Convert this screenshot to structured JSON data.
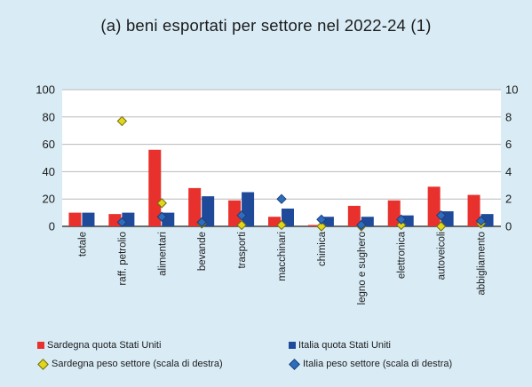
{
  "chart_data": {
    "type": "bar",
    "title": "(a) beni esportati per settore nel 2022-24 (1)",
    "categories": [
      "totale",
      "raff. petrolio",
      "alimentari",
      "bevande",
      "trasporti",
      "macchinari",
      "chimica",
      "legno e sughero",
      "elettronica",
      "autoveicoli",
      "abbigliamento"
    ],
    "y_left": {
      "lim": [
        0,
        100
      ],
      "ticks": [
        0,
        20,
        40,
        60,
        80,
        100
      ],
      "tick_labels": [
        "0",
        "20",
        "40",
        "60",
        "80",
        "100"
      ]
    },
    "y_right": {
      "lim": [
        0,
        10
      ],
      "ticks": [
        0,
        2,
        4,
        6,
        8,
        10
      ],
      "tick_labels": [
        "0",
        "2",
        "4",
        "6",
        "8",
        "10"
      ]
    },
    "series": [
      {
        "name": "Sardegna quota Stati Uniti",
        "kind": "bar",
        "axis": "left",
        "color": "#e8312c",
        "values": [
          10,
          9,
          56,
          28,
          19,
          7,
          1,
          15,
          19,
          29,
          23
        ]
      },
      {
        "name": "Italia quota Stati Uniti",
        "kind": "bar",
        "axis": "left",
        "color": "#1f4a9a",
        "values": [
          10,
          10,
          10,
          22,
          25,
          13,
          7,
          7,
          8,
          11,
          9
        ]
      },
      {
        "name": "Sardegna peso settore (scala di destra)",
        "kind": "marker",
        "axis": "right",
        "color": "#e1d61a",
        "values": [
          null,
          7.7,
          1.7,
          0.2,
          0.1,
          0.1,
          0.0,
          0.0,
          0.1,
          0.0,
          0.2
        ]
      },
      {
        "name": "Italia peso settore (scala di destra)",
        "kind": "marker",
        "axis": "right",
        "color": "#2d6dbd",
        "values": [
          null,
          0.3,
          0.7,
          0.3,
          0.8,
          2.0,
          0.5,
          0.1,
          0.5,
          0.8,
          0.4
        ]
      }
    ],
    "grid": {
      "horizontal": true,
      "vertical": false
    },
    "legend_position": "bottom"
  }
}
